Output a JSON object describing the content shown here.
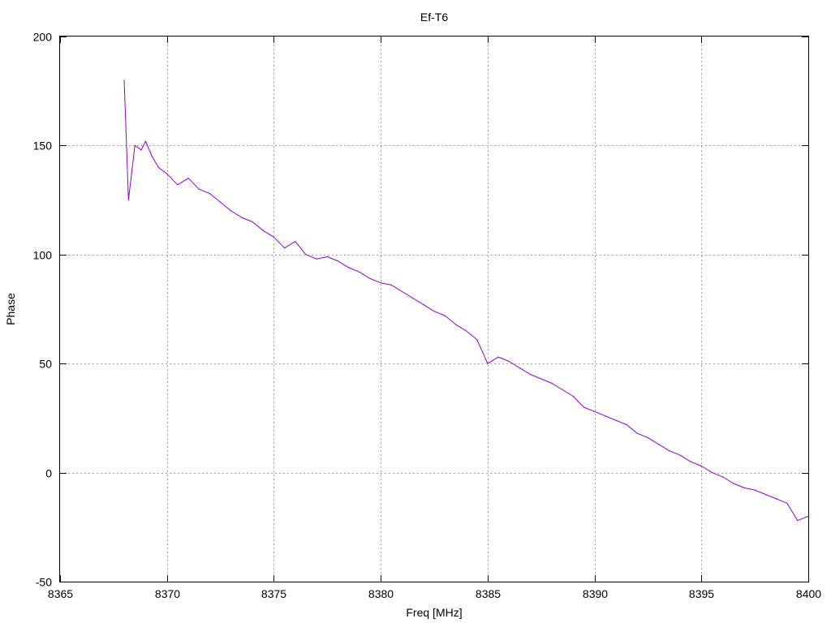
{
  "chart_data": {
    "type": "line",
    "title": "Ef-T6",
    "xlabel": "Freq [MHz]",
    "ylabel": "Phase",
    "xlim": [
      8365,
      8400
    ],
    "ylim": [
      -50,
      200
    ],
    "xticks": [
      8365,
      8370,
      8375,
      8380,
      8385,
      8390,
      8395,
      8400
    ],
    "yticks": [
      -50,
      0,
      50,
      100,
      150,
      200
    ],
    "grid": true,
    "legend": "none",
    "series": [
      {
        "color": "#9400d3",
        "x": [
          8368.0,
          8368.2,
          8368.5,
          8368.8,
          8369.0,
          8369.3,
          8369.6,
          8370.0,
          8370.5,
          8371.0,
          8371.5,
          8372.0,
          8372.5,
          8373.0,
          8373.5,
          8374.0,
          8374.5,
          8375.0,
          8375.5,
          8376.0,
          8376.5,
          8377.0,
          8377.5,
          8378.0,
          8378.5,
          8379.0,
          8379.5,
          8380.0,
          8380.5,
          8381.0,
          8381.5,
          8382.0,
          8382.5,
          8383.0,
          8383.5,
          8384.0,
          8384.5,
          8385.0,
          8385.5,
          8386.0,
          8386.5,
          8387.0,
          8387.5,
          8388.0,
          8388.5,
          8389.0,
          8389.5,
          8390.0,
          8390.5,
          8391.0,
          8391.5,
          8392.0,
          8392.5,
          8393.0,
          8393.5,
          8394.0,
          8394.5,
          8395.0,
          8395.5,
          8396.0,
          8396.5,
          8397.0,
          8397.5,
          8398.0,
          8398.5,
          8399.0,
          8399.5,
          8400.0
        ],
        "y": [
          180,
          125,
          150,
          148,
          152,
          145,
          140,
          137,
          132,
          135,
          130,
          128,
          124,
          120,
          117,
          115,
          111,
          108,
          103,
          106,
          100,
          98,
          99,
          97,
          94,
          92,
          89,
          87,
          86,
          83,
          80,
          77,
          74,
          72,
          68,
          65,
          61,
          50,
          53,
          51,
          48,
          45,
          43,
          41,
          38,
          35,
          30,
          28,
          26,
          24,
          22,
          18,
          16,
          13,
          10,
          8,
          5,
          3,
          0,
          -2,
          -5,
          -7,
          -8,
          -10,
          -12,
          -14,
          -22,
          -20
        ]
      }
    ]
  }
}
